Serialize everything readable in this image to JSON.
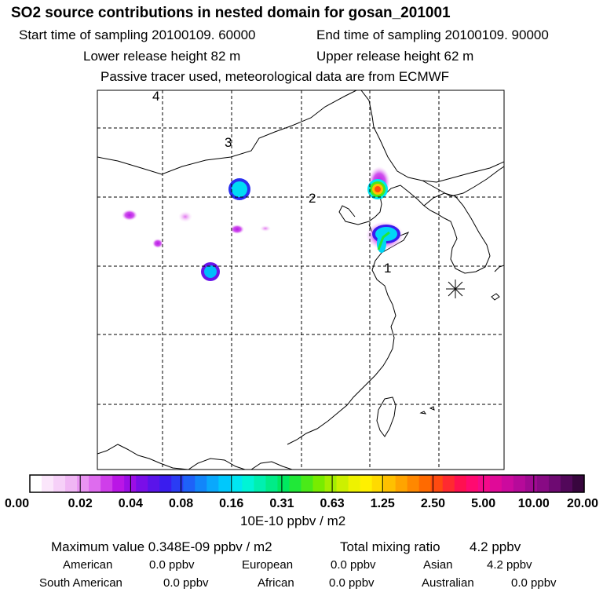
{
  "header": {
    "title": "SO2 source contributions in nested domain for gosan_201001",
    "start_time": "Start time of sampling 20100109. 60000",
    "end_time": "End time of sampling 20100109. 90000",
    "lower_height": "Lower release height   82 m",
    "upper_height": "Upper release height   62 m",
    "note": "Passive tracer used, meteorological data are from ECMWF"
  },
  "map": {
    "region_labels": [
      "1",
      "2",
      "3",
      "4"
    ],
    "colors": {
      "frame": "#000000",
      "coastline": "#000000",
      "gridline": "#000000"
    }
  },
  "colorbar": {
    "tick_labels": [
      "0.00",
      "0.02",
      "0.04",
      "0.08",
      "0.16",
      "0.31",
      "0.63",
      "1.25",
      "2.50",
      "5.00",
      "10.00",
      "20.00"
    ],
    "unit": "10E-10 ppbv / m2",
    "colors": [
      "#ffffff",
      "#fbe6fb",
      "#f6d0f8",
      "#f0b6f4",
      "#e994f2",
      "#de6cee",
      "#cf3eea",
      "#ba16e6",
      "#9c0ee6",
      "#7a0ee8",
      "#5a14ea",
      "#3a1cee",
      "#2a3cf4",
      "#1e62f8",
      "#1286fa",
      "#0aa8fc",
      "#00c8fc",
      "#00e6f2",
      "#00f4d6",
      "#00f0b0",
      "#00ec88",
      "#00e860",
      "#20e838",
      "#4aea18",
      "#78ec00",
      "#a4ee00",
      "#ccf000",
      "#eef200",
      "#fff000",
      "#ffda00",
      "#ffc000",
      "#ffa400",
      "#ff8800",
      "#ff6a00",
      "#ff4a10",
      "#ff2a30",
      "#ff1050",
      "#ff0a70",
      "#f40a8a",
      "#e00a98",
      "#cc0a9e",
      "#b60a9a",
      "#a00a92",
      "#880a84",
      "#6e0a72",
      "#52085a",
      "#38063e"
    ]
  },
  "footer": {
    "max_value": "Maximum value  0.348E-09 ppbv / m2",
    "total_label": "Total mixing ratio",
    "total_value": "4.2 ppbv",
    "regions": [
      {
        "name": "American",
        "value": "0.0 ppbv"
      },
      {
        "name": "European",
        "value": "0.0 ppbv"
      },
      {
        "name": "Asian",
        "value": "4.2 ppbv"
      },
      {
        "name": "South American",
        "value": "0.0 ppbv"
      },
      {
        "name": "African",
        "value": "0.0 ppbv"
      },
      {
        "name": "Australian",
        "value": "0.0 ppbv"
      }
    ]
  }
}
